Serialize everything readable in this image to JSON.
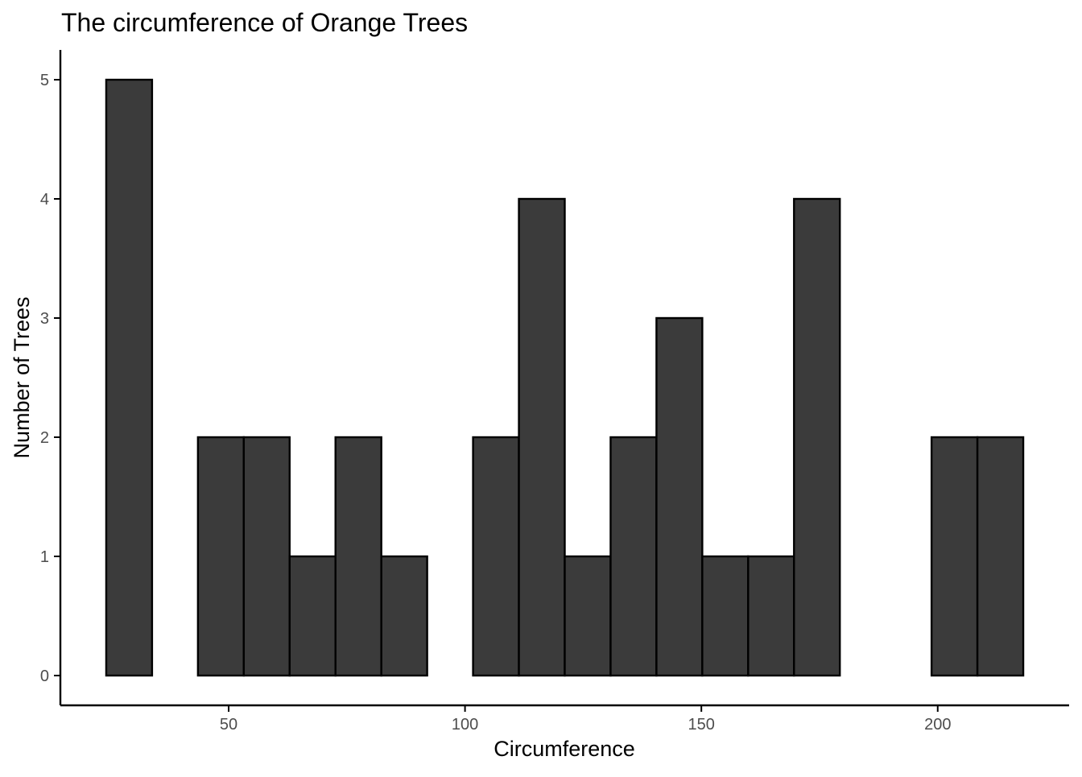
{
  "chart_data": {
    "type": "bar",
    "title": "The circumference of Orange Trees",
    "xlabel": "Circumference",
    "ylabel": "Number of Trees",
    "bin_width": 9.7,
    "bins": [
      {
        "x0": 24.1,
        "x1": 33.8,
        "count": 5
      },
      {
        "x0": 33.8,
        "x1": 43.5,
        "count": 0
      },
      {
        "x0": 43.5,
        "x1": 53.2,
        "count": 2
      },
      {
        "x0": 53.2,
        "x1": 62.9,
        "count": 2
      },
      {
        "x0": 62.9,
        "x1": 72.6,
        "count": 1
      },
      {
        "x0": 72.6,
        "x1": 82.3,
        "count": 2
      },
      {
        "x0": 82.3,
        "x1": 92.0,
        "count": 1
      },
      {
        "x0": 92.0,
        "x1": 101.7,
        "count": 0
      },
      {
        "x0": 101.7,
        "x1": 111.4,
        "count": 2
      },
      {
        "x0": 111.4,
        "x1": 121.1,
        "count": 4
      },
      {
        "x0": 121.1,
        "x1": 130.8,
        "count": 1
      },
      {
        "x0": 130.8,
        "x1": 140.5,
        "count": 2
      },
      {
        "x0": 140.5,
        "x1": 150.2,
        "count": 3
      },
      {
        "x0": 150.2,
        "x1": 159.9,
        "count": 1
      },
      {
        "x0": 159.9,
        "x1": 169.6,
        "count": 1
      },
      {
        "x0": 169.6,
        "x1": 179.3,
        "count": 4
      },
      {
        "x0": 179.3,
        "x1": 189.0,
        "count": 0
      },
      {
        "x0": 189.0,
        "x1": 198.7,
        "count": 0
      },
      {
        "x0": 198.7,
        "x1": 208.4,
        "count": 2
      },
      {
        "x0": 208.4,
        "x1": 218.1,
        "count": 2
      }
    ],
    "xlim": [
      14.4,
      227.8
    ],
    "ylim": [
      -0.25,
      5.25
    ],
    "x_ticks": [
      50,
      100,
      150,
      200
    ],
    "y_ticks": [
      0,
      1,
      2,
      3,
      4,
      5
    ],
    "grid": false,
    "legend": "none",
    "colors": {
      "bar_fill": "#3b3b3b",
      "bar_stroke": "#000000",
      "axis": "#000000",
      "tick_text": "#4d4d4d"
    }
  }
}
